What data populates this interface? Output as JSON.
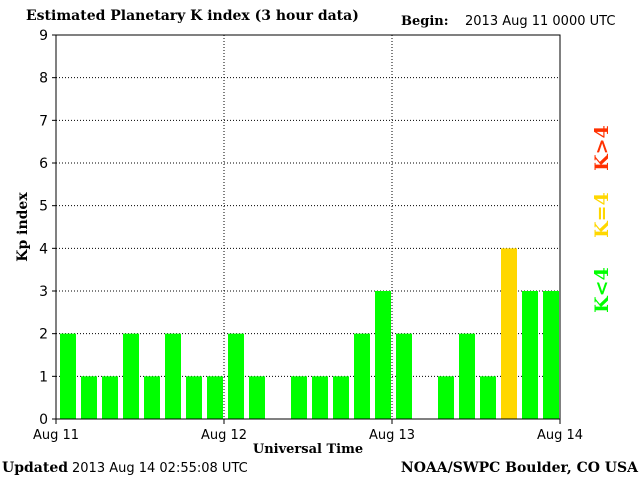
{
  "header": {
    "title": "Estimated Planetary K index (3 hour data)",
    "begin_label": "Begin:",
    "begin_value": "2013 Aug 11 0000 UTC"
  },
  "footer": {
    "updated_label": "Updated",
    "updated_value": "2013 Aug 14 02:55:08 UTC",
    "source": "NOAA/SWPC Boulder, CO USA"
  },
  "chart_data": {
    "type": "bar",
    "title": "Estimated Planetary K index (3 hour data)",
    "xlabel": "Universal Time",
    "ylabel": "Kp index",
    "ylim": [
      0,
      9
    ],
    "yticks": [
      "0",
      "1",
      "2",
      "3",
      "4",
      "5",
      "6",
      "7",
      "8",
      "9"
    ],
    "xticks": [
      "Aug 11",
      "Aug 12",
      "Aug 13",
      "Aug 14"
    ],
    "grid": true,
    "values": [
      2,
      1,
      1,
      2,
      1,
      2,
      1,
      1,
      2,
      1,
      0,
      1,
      1,
      1,
      2,
      3,
      2,
      0,
      1,
      2,
      1,
      4,
      3,
      3
    ],
    "colors": {
      "below": "#00ff00",
      "equal": "#ffd700",
      "above": "#ff3000"
    },
    "legend": [
      {
        "label": "K<4",
        "color": "#00ff00"
      },
      {
        "label": "K=4",
        "color": "#ffd700"
      },
      {
        "label": "K>4",
        "color": "#ff3000"
      }
    ]
  }
}
